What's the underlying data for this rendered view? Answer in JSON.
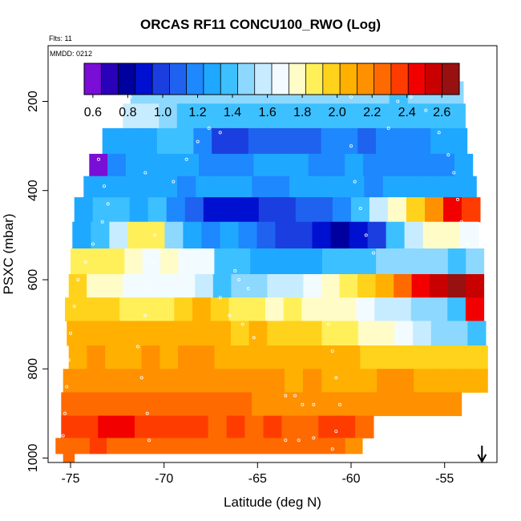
{
  "chart_data": {
    "type": "heatmap",
    "title": "ORCAS RF11 CONCU100_RWO (Log)",
    "flights_label": "Flts: 11",
    "date_label": "MMDD: 0212",
    "xlabel": "Latitude (deg N)",
    "ylabel": "PSXC (mbar)",
    "xlim": [
      -76.2,
      -52.2
    ],
    "ylim": [
      1010,
      75
    ],
    "y_reversed": true,
    "x_ticks": [
      "-75",
      "-70",
      "-65",
      "-60",
      "-55"
    ],
    "x_tick_values": [
      -75,
      -70,
      -65,
      -60,
      -55
    ],
    "y_ticks": [
      "200",
      "400",
      "600",
      "800",
      "1000"
    ],
    "y_tick_values": [
      200,
      400,
      600,
      800,
      1000
    ],
    "grid": false,
    "colorbar": {
      "ticks": [
        "0.6",
        "0.8",
        "1.0",
        "1.2",
        "1.4",
        "1.6",
        "1.8",
        "2.0",
        "2.2",
        "2.4",
        "2.6"
      ],
      "tick_values": [
        0.6,
        0.8,
        1.0,
        1.2,
        1.4,
        1.6,
        1.8,
        2.0,
        2.2,
        2.4,
        2.6
      ],
      "range": [
        0.55,
        2.7
      ],
      "colors": [
        "#7a0dd6",
        "#2a00b8",
        "#00009e",
        "#0010d0",
        "#1a3ee0",
        "#1f62f0",
        "#1e88ff",
        "#1fa8ff",
        "#3dc0ff",
        "#8cd8ff",
        "#c8ecff",
        "#f2fbff",
        "#fffcc8",
        "#fff05a",
        "#ffd21c",
        "#ffb000",
        "#ff9000",
        "#ff6a00",
        "#ff3c00",
        "#f20000",
        "#c80000",
        "#991010"
      ]
    },
    "arrow": "down",
    "arrow_at_lat": -53.0,
    "layers": [
      {
        "p": 180,
        "lat_min": -71.8,
        "lat_max": -54.0,
        "values": [
          1.5,
          1.5,
          1.5,
          1.5,
          1.45,
          1.45,
          1.5,
          1.45,
          1.45,
          1.45,
          1.45,
          1.5,
          1.45,
          1.45,
          1.4,
          1.45,
          1.5,
          1.5
        ]
      },
      {
        "p": 230,
        "lat_min": -72.2,
        "lat_max": -53.9,
        "values": [
          1.55,
          1.55,
          1.45,
          1.4,
          1.4,
          1.4,
          1.35,
          1.35,
          1.35,
          1.35,
          1.35,
          1.35,
          1.35,
          1.35,
          1.35,
          1.35,
          1.35,
          1.4,
          1.4
        ]
      },
      {
        "p": 290,
        "lat_min": -73.3,
        "lat_max": -53.8,
        "values": [
          1.25,
          1.3,
          1.3,
          1.35,
          1.35,
          1.2,
          0.95,
          1.0,
          1.05,
          1.1,
          1.1,
          1.1,
          1.15,
          1.15,
          1.1,
          1.15,
          1.2,
          1.2,
          1.25,
          1.25
        ]
      },
      {
        "p": 345,
        "lat_min": -74.0,
        "lat_max": -53.5,
        "values": [
          0.6,
          1.2,
          1.25,
          1.3,
          1.25,
          1.25,
          1.2,
          1.2,
          1.2,
          1.25,
          1.25,
          1.25,
          1.2,
          1.2,
          1.25,
          1.2,
          1.2,
          1.15,
          1.2,
          1.2,
          1.25
        ]
      },
      {
        "p": 390,
        "lat_min": -74.3,
        "lat_max": -53.3,
        "values": [
          1.25,
          1.25,
          1.3,
          1.25,
          1.25,
          1.2,
          1.25,
          1.25,
          1.25,
          1.2,
          1.2,
          1.25,
          1.25,
          1.3,
          1.25,
          1.2,
          1.25,
          1.25,
          1.25,
          1.25,
          1.25
        ]
      },
      {
        "p": 440,
        "lat_min": -74.8,
        "lat_max": -53.1,
        "values": [
          1.25,
          1.4,
          1.35,
          1.25,
          1.4,
          1.2,
          1.05,
          0.9,
          0.85,
          0.9,
          0.95,
          1.0,
          1.05,
          1.1,
          1.2,
          1.35,
          1.6,
          1.8,
          1.95,
          2.2,
          2.45,
          2.4
        ]
      },
      {
        "p": 500,
        "lat_min": -74.9,
        "lat_max": -53.2,
        "values": [
          1.3,
          1.4,
          1.6,
          1.9,
          1.85,
          1.5,
          1.3,
          1.2,
          1.3,
          1.15,
          1.05,
          1.0,
          0.95,
          0.85,
          0.8,
          0.9,
          1.0,
          1.4,
          1.6,
          1.8,
          1.75,
          1.7
        ]
      },
      {
        "p": 560,
        "lat_min": -75.0,
        "lat_max": -52.9,
        "values": [
          1.9,
          1.9,
          1.85,
          1.75,
          1.7,
          1.75,
          1.7,
          1.65,
          1.4,
          1.4,
          1.3,
          1.3,
          1.25,
          1.3,
          1.35,
          1.35,
          1.4,
          1.45,
          1.5,
          1.45,
          1.5,
          1.4,
          1.45
        ]
      },
      {
        "p": 615,
        "lat_min": -75.1,
        "lat_max": -52.9,
        "values": [
          2.0,
          1.8,
          1.75,
          1.7,
          1.7,
          1.65,
          1.7,
          1.6,
          1.4,
          1.45,
          1.5,
          1.55,
          1.6,
          1.7,
          1.75,
          1.9,
          2.0,
          2.1,
          2.3,
          2.5,
          2.6,
          2.7,
          2.6
        ]
      },
      {
        "p": 665,
        "lat_min": -75.3,
        "lat_max": -52.9,
        "values": [
          2.0,
          2.0,
          1.95,
          1.9,
          1.9,
          1.9,
          1.95,
          2.05,
          2.0,
          1.9,
          1.85,
          1.8,
          1.9,
          1.8,
          1.75,
          1.8,
          1.7,
          1.6,
          1.55,
          1.5,
          1.45,
          1.35,
          2.5
        ]
      },
      {
        "p": 720,
        "lat_min": -75.2,
        "lat_max": -52.8,
        "values": [
          2.05,
          2.1,
          2.1,
          2.05,
          2.1,
          2.1,
          2.1,
          2.1,
          2.05,
          2.0,
          2.05,
          2.0,
          1.95,
          1.95,
          1.9,
          1.85,
          1.8,
          1.75,
          1.65,
          1.55,
          1.5,
          1.45,
          1.4
        ]
      },
      {
        "p": 775,
        "lat_min": -75.1,
        "lat_max": -52.7,
        "values": [
          2.1,
          2.15,
          2.1,
          2.1,
          2.15,
          2.1,
          2.15,
          2.15,
          2.1,
          2.1,
          2.1,
          2.1,
          2.05,
          2.05,
          2.05,
          2.05,
          2.0,
          2.0,
          2.0,
          2.0,
          2.0,
          1.95,
          1.95
        ]
      },
      {
        "p": 825,
        "lat_min": -75.4,
        "lat_max": -52.7,
        "values": [
          2.2,
          2.2,
          2.2,
          2.15,
          2.2,
          2.2,
          2.2,
          2.2,
          2.2,
          2.2,
          2.15,
          2.15,
          2.1,
          2.15,
          2.1,
          2.1,
          2.1,
          2.15,
          2.15,
          2.1,
          2.1,
          2.1,
          2.1
        ]
      },
      {
        "p": 880,
        "lat_min": -75.5,
        "lat_max": -54.1,
        "values": [
          2.3,
          2.3,
          2.3,
          2.25,
          2.25,
          2.3,
          2.25,
          2.25,
          2.25,
          2.25,
          2.2,
          2.2,
          2.2,
          2.2,
          2.15,
          2.2,
          2.2,
          2.15,
          2.15,
          2.15,
          2.2
        ]
      },
      {
        "p": 930,
        "lat_min": -75.5,
        "lat_max": -58.8,
        "values": [
          2.4,
          2.4,
          2.45,
          2.45,
          2.4,
          2.4,
          2.35,
          2.35,
          2.3,
          2.35,
          2.3,
          2.35,
          2.3,
          2.3,
          2.35,
          2.35,
          2.3
        ]
      },
      {
        "p": 980,
        "lat_min": -75.8,
        "lat_max": -59.4,
        "values": [
          2.3,
          2.3,
          2.35,
          2.3,
          2.25,
          2.3,
          2.3,
          2.25,
          2.3,
          2.25,
          2.25,
          2.3,
          2.25,
          2.25,
          2.25,
          2.3,
          2.25,
          2.2
        ]
      },
      {
        "p": 1000,
        "lat_min": -75.4,
        "lat_max": -74.8,
        "values": [
          2.3
        ]
      }
    ],
    "flight_track": [
      [
        -71.8,
        190
      ],
      [
        -70.0,
        180
      ],
      [
        -68.0,
        180
      ],
      [
        -66.0,
        180
      ],
      [
        -64.0,
        180
      ],
      [
        -62.0,
        180
      ],
      [
        -60.0,
        180
      ],
      [
        -58.0,
        180
      ],
      [
        -56.0,
        180
      ],
      [
        -54.5,
        180
      ],
      [
        -73.5,
        330
      ],
      [
        -73.2,
        390
      ],
      [
        -73.0,
        430
      ],
      [
        -73.3,
        470
      ],
      [
        -73.8,
        520
      ],
      [
        -74.2,
        560
      ],
      [
        -74.6,
        600
      ],
      [
        -74.8,
        660
      ],
      [
        -75.0,
        720
      ],
      [
        -75.1,
        780
      ],
      [
        -75.2,
        840
      ],
      [
        -75.3,
        900
      ],
      [
        -75.4,
        950
      ],
      [
        -71.0,
        360
      ],
      [
        -70.5,
        500
      ],
      [
        -70.6,
        560
      ],
      [
        -70.8,
        620
      ],
      [
        -71.0,
        680
      ],
      [
        -71.4,
        750
      ],
      [
        -71.2,
        820
      ],
      [
        -70.9,
        900
      ],
      [
        -70.8,
        960
      ],
      [
        -69.5,
        380
      ],
      [
        -68.8,
        330
      ],
      [
        -68.2,
        290
      ],
      [
        -67.6,
        260
      ],
      [
        -67.0,
        270
      ],
      [
        -67.0,
        640
      ],
      [
        -66.5,
        680
      ],
      [
        -65.8,
        700
      ],
      [
        -65.2,
        730
      ],
      [
        -66.2,
        580
      ],
      [
        -66.0,
        600
      ],
      [
        -65.5,
        620
      ],
      [
        -63.5,
        860
      ],
      [
        -63.0,
        860
      ],
      [
        -62.6,
        880
      ],
      [
        -62.0,
        880
      ],
      [
        -61.2,
        700
      ],
      [
        -61.0,
        760
      ],
      [
        -60.8,
        820
      ],
      [
        -60.6,
        880
      ],
      [
        -60.8,
        940
      ],
      [
        -61.0,
        980
      ],
      [
        -60.0,
        190
      ],
      [
        -60.0,
        300
      ],
      [
        -59.8,
        380
      ],
      [
        -59.5,
        440
      ],
      [
        -59.2,
        500
      ],
      [
        -58.8,
        540
      ],
      [
        -58.0,
        260
      ],
      [
        -57.5,
        200
      ],
      [
        -56.8,
        190
      ],
      [
        -56.0,
        220
      ],
      [
        -55.3,
        270
      ],
      [
        -54.8,
        320
      ],
      [
        -54.5,
        360
      ],
      [
        -54.3,
        420
      ],
      [
        -54.1,
        470
      ],
      [
        -53.8,
        520
      ],
      [
        -63.5,
        960
      ],
      [
        -62.8,
        960
      ],
      [
        -62.0,
        955
      ]
    ]
  }
}
